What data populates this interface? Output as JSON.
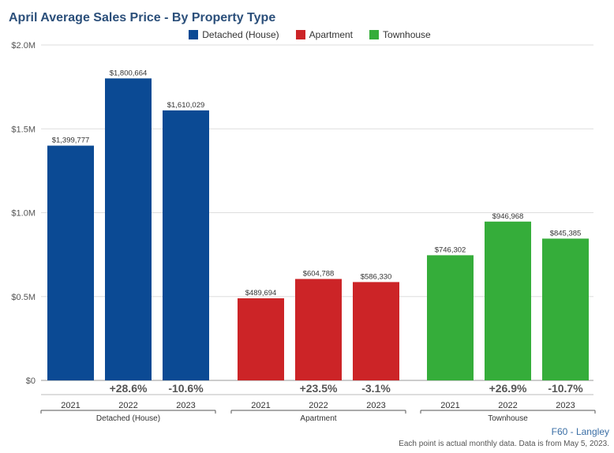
{
  "header": {
    "title": "April Average Sales Price - By Property Type"
  },
  "legend": [
    {
      "label": "Detached (House)",
      "color": "#0b4a94"
    },
    {
      "label": "Apartment",
      "color": "#cc2427"
    },
    {
      "label": "Townhouse",
      "color": "#35ad3a"
    }
  ],
  "footer": {
    "brand": "F60 - Langley",
    "note": "Each point is actual monthly data. Data is from May 5, 2023."
  },
  "chart_data": {
    "type": "bar",
    "title": "April Average Sales Price - By Property Type",
    "ylim": [
      0,
      2000000
    ],
    "y_ticks": [
      {
        "value": 0,
        "label": "$0"
      },
      {
        "value": 500000,
        "label": "$0.5M"
      },
      {
        "value": 1000000,
        "label": "$1.0M"
      },
      {
        "value": 1500000,
        "label": "$1.5M"
      },
      {
        "value": 2000000,
        "label": "$2.0M"
      }
    ],
    "grid": true,
    "legend_position": "top-center",
    "groups": [
      {
        "name": "Detached (House)",
        "color": "#0b4a94",
        "bars": [
          {
            "year": "2021",
            "value": 1399777,
            "label": "$1,399,777",
            "change": ""
          },
          {
            "year": "2022",
            "value": 1800664,
            "label": "$1,800,664",
            "change": "+28.6%"
          },
          {
            "year": "2023",
            "value": 1610029,
            "label": "$1,610,029",
            "change": "-10.6%"
          }
        ]
      },
      {
        "name": "Apartment",
        "color": "#cc2427",
        "bars": [
          {
            "year": "2021",
            "value": 489694,
            "label": "$489,694",
            "change": ""
          },
          {
            "year": "2022",
            "value": 604788,
            "label": "$604,788",
            "change": "+23.5%"
          },
          {
            "year": "2023",
            "value": 586330,
            "label": "$586,330",
            "change": "-3.1%"
          }
        ]
      },
      {
        "name": "Townhouse",
        "color": "#35ad3a",
        "bars": [
          {
            "year": "2021",
            "value": 746302,
            "label": "$746,302",
            "change": ""
          },
          {
            "year": "2022",
            "value": 946968,
            "label": "$946,968",
            "change": "+26.9%"
          },
          {
            "year": "2023",
            "value": 845385,
            "label": "$845,385",
            "change": "-10.7%"
          }
        ]
      }
    ]
  }
}
